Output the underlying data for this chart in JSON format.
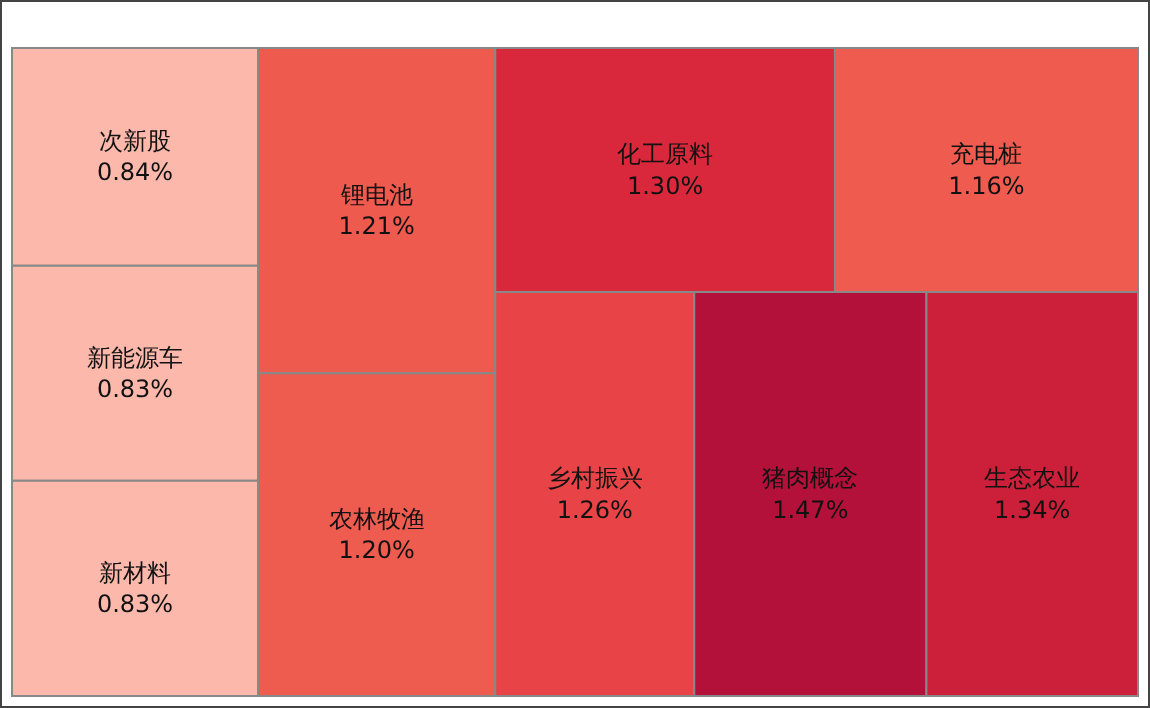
{
  "chart_data": {
    "type": "other",
    "categories": [
      "次新股",
      "新能源车",
      "新材料",
      "锂电池",
      "农林牧渔",
      "化工原料",
      "充电桩",
      "乡村振兴",
      "猪肉概念",
      "生态农业"
    ],
    "values": [
      0.84,
      0.83,
      0.83,
      1.21,
      1.2,
      1.3,
      1.16,
      1.26,
      1.47,
      1.34
    ],
    "value_labels": [
      "0.84%",
      "0.83%",
      "0.83%",
      "1.21%",
      "1.20%",
      "1.30%",
      "1.16%",
      "1.26%",
      "1.47%",
      "1.34%"
    ],
    "colors": [
      "#fbb8ab",
      "#fbb8ab",
      "#fbb8ab",
      "#ef5a4e",
      "#ee5b4f",
      "#d9283c",
      "#ef5b4f",
      "#e84447",
      "#b3103a",
      "#cc1f3a"
    ]
  }
}
